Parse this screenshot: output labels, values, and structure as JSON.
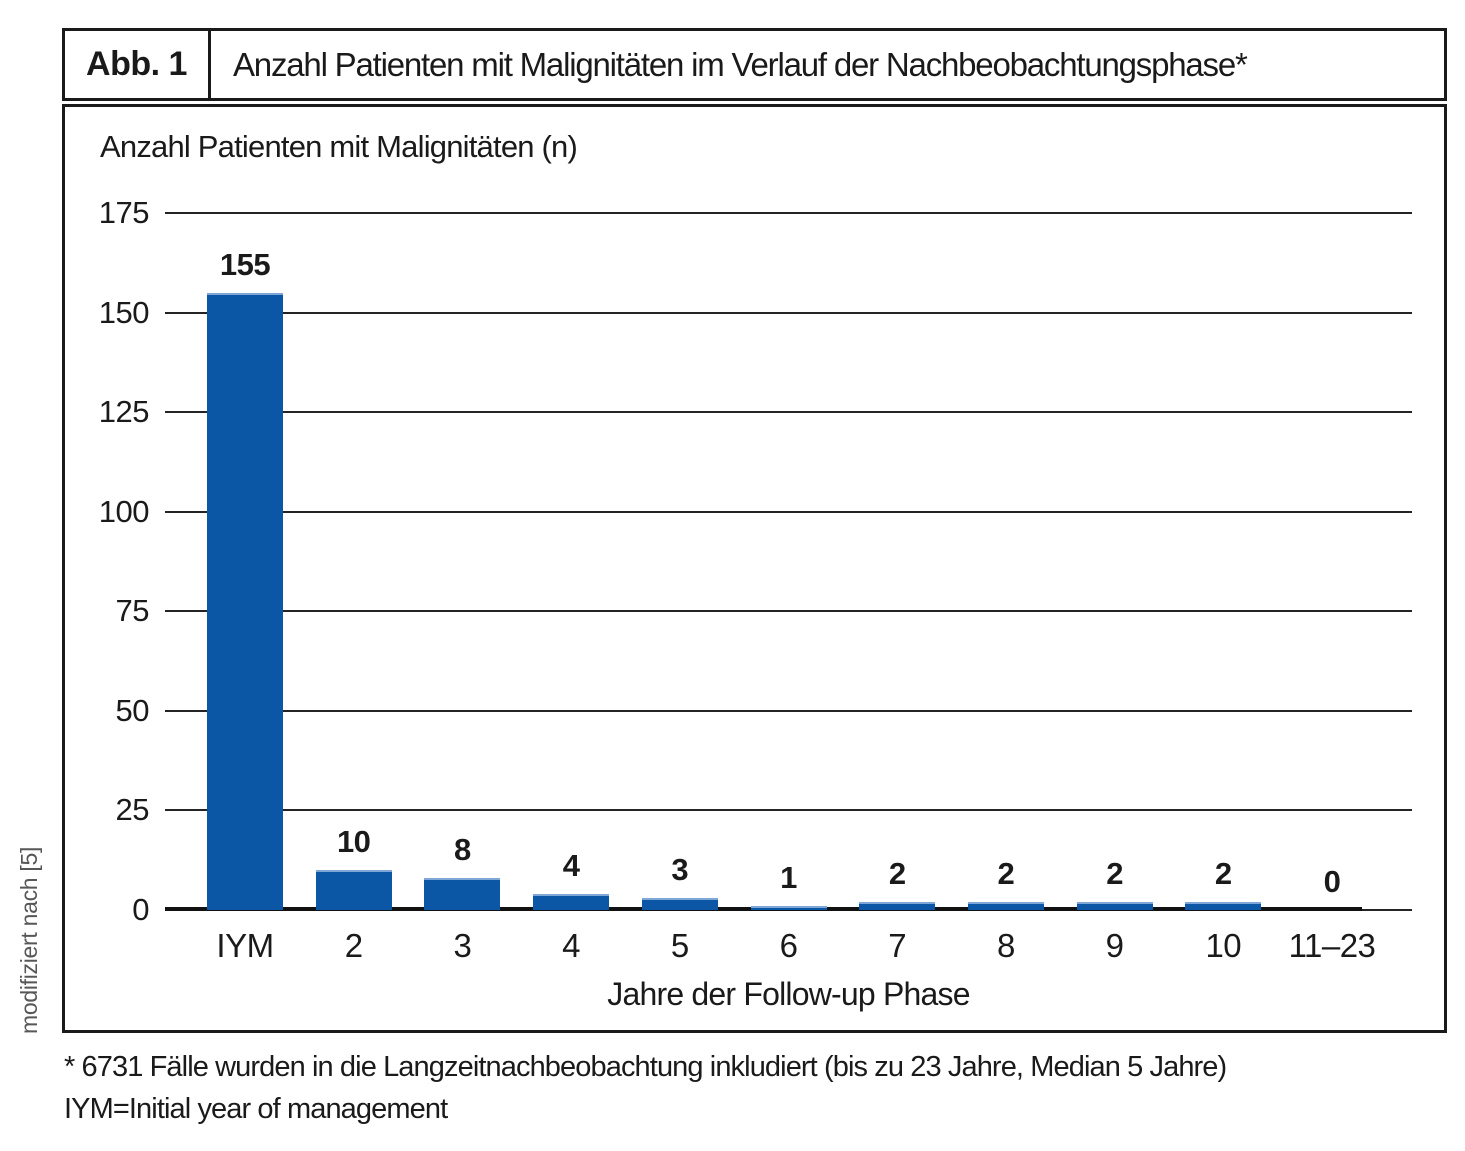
{
  "figure": {
    "label": "Abb. 1",
    "title": "Anzahl Patienten mit Malignitäten im Verlauf der Nachbeobachtungsphase*"
  },
  "chart_data": {
    "type": "bar",
    "title": "Anzahl Patienten mit Malignitäten im Verlauf der Nachbeobachtungsphase",
    "ylabel": "Anzahl Patienten mit Malignitäten (n)",
    "xlabel": "Jahre der Follow-up Phase",
    "categories": [
      "IYM",
      "2",
      "3",
      "4",
      "5",
      "6",
      "7",
      "8",
      "9",
      "10",
      "11–23"
    ],
    "values": [
      155,
      10,
      8,
      4,
      3,
      1,
      2,
      2,
      2,
      2,
      0
    ],
    "yticks": [
      175,
      150,
      125,
      100,
      75,
      50,
      25,
      0
    ],
    "ylim": [
      0,
      175
    ],
    "grid": true,
    "legend_position": "none",
    "bar_color": "#0b56a5",
    "bar_top_edge_color": "#7ea7d8",
    "gridline_color": "#242424",
    "baseline_color": "#111111"
  },
  "source_note": "modifiziert nach [5]",
  "footnotes": [
    "* 6731 Fälle wurden in die Langzeitnachbeobachtung inkludiert (bis zu 23 Jahre, Median 5 Jahre)",
    "IYM=Initial year of management"
  ]
}
